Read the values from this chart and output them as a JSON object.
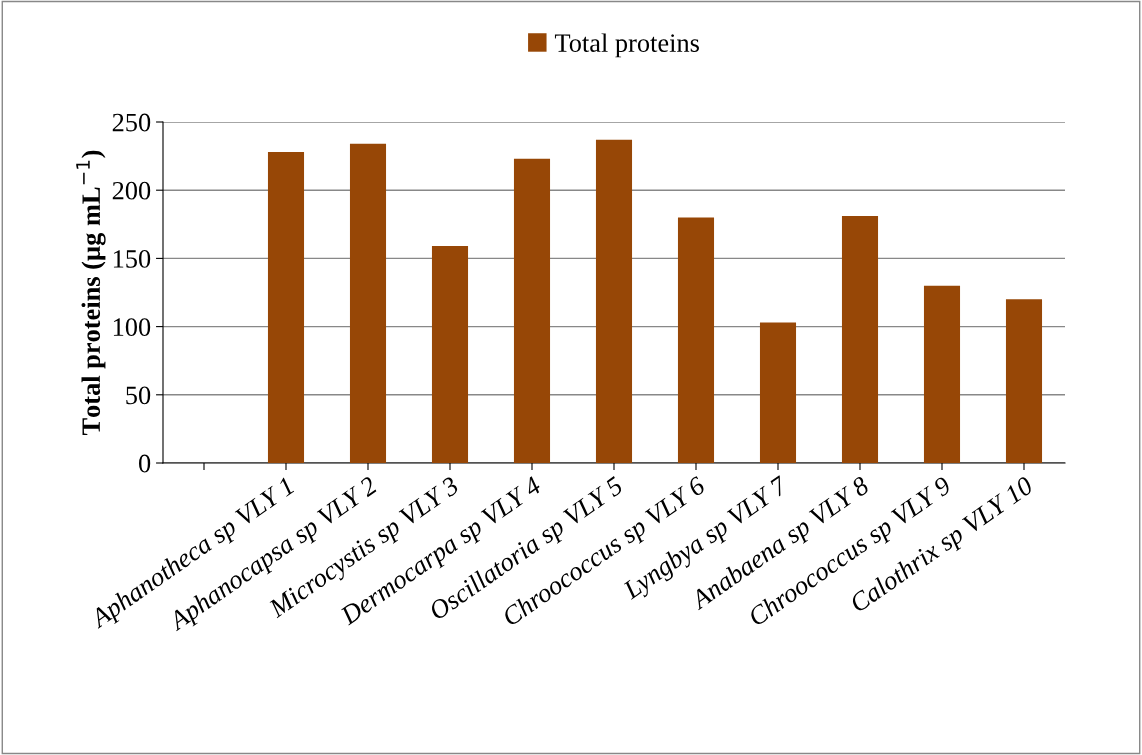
{
  "chart_data": {
    "type": "bar",
    "ylabel": "Total proteins (µg mL$^{−1}$)",
    "categories": [
      null,
      "Aphanotheca sp VLY 1",
      "Aphanocapsa sp VLY 2",
      "Microcystis sp VLY 3",
      "Dermocarpa sp VLY 4",
      "Oscillatoria sp VLY 5",
      "Chroococcus sp VLY 6",
      "Lyngbya sp VLY 7",
      "Anabaena sp VLY 8",
      "Chroococcus sp VLY 9",
      "Calothrix sp VLY 10"
    ],
    "series": [
      {
        "name": "Total proteins",
        "color": "#974706",
        "values": [
          null,
          228,
          234,
          159,
          223,
          237,
          180,
          103,
          181,
          130,
          120
        ]
      }
    ],
    "ylim": [
      0,
      250
    ],
    "yticks": [
      0,
      50,
      100,
      150,
      200,
      250
    ],
    "grid": "y",
    "legend": "top"
  }
}
